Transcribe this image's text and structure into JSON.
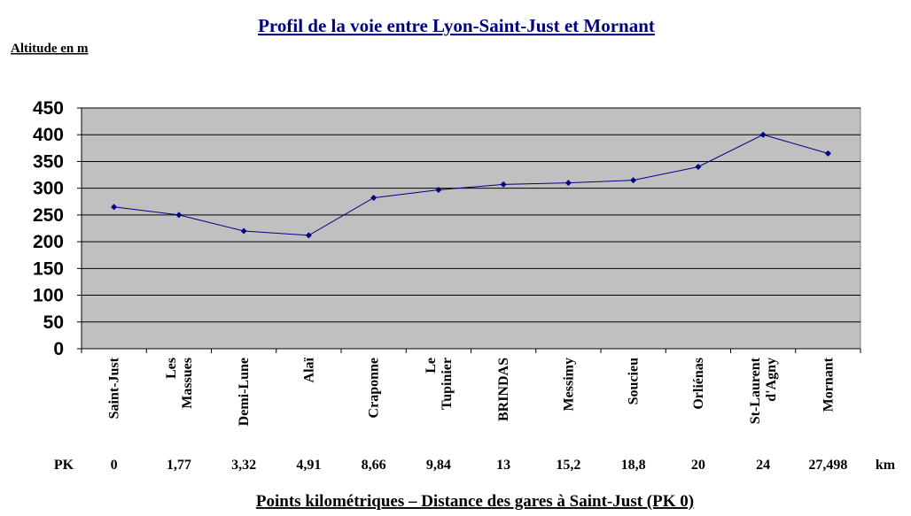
{
  "chart_data": {
    "type": "line",
    "title": "Profil de la voie entre Lyon-Saint-Just et Mornant",
    "ylabel": "Altitude en m",
    "xlabel": "Points kilométriques – Distance des gares à Saint-Just (PK 0)",
    "ylim": [
      0,
      450
    ],
    "yticks": [
      0,
      50,
      100,
      150,
      200,
      250,
      300,
      350,
      400,
      450
    ],
    "grid": true,
    "pk_label": "PK",
    "pk_unit": "km",
    "categories": [
      [
        "Saint-Just"
      ],
      [
        "Les",
        "Massues"
      ],
      [
        "Demi-Lune"
      ],
      [
        "Alaï"
      ],
      [
        "Craponne"
      ],
      [
        "Le",
        "Tupinier"
      ],
      [
        "BRINDAS"
      ],
      [
        "Messimy"
      ],
      [
        "Soucieu"
      ],
      [
        "Orliénas"
      ],
      [
        "St-Laurent",
        "d'Agny"
      ],
      [
        "Mornant"
      ]
    ],
    "pk": [
      "0",
      "1,77",
      "3,32",
      "4,91",
      "8,66",
      "9,84",
      "13",
      "15,2",
      "18,8",
      "20",
      "24",
      "27,498"
    ],
    "series": [
      {
        "values": [
          265,
          250,
          220,
          212,
          282,
          297,
          307,
          310,
          315,
          340,
          400,
          365
        ],
        "color": "#000080"
      }
    ],
    "plot_background": "#c0c0c0"
  }
}
